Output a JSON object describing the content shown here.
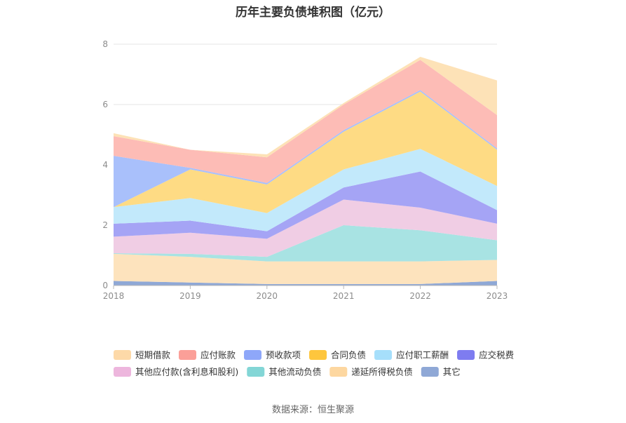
{
  "title": "历年主要负债堆积图（亿元）",
  "source": "数据来源：恒生聚源",
  "chart_data": {
    "type": "area",
    "stacked": true,
    "title": "历年主要负债堆积图（亿元）",
    "categories": [
      "2018",
      "2019",
      "2020",
      "2021",
      "2022",
      "2023"
    ],
    "ylim": [
      0,
      8
    ],
    "yticks": [
      "0",
      "2",
      "4",
      "6",
      "8"
    ],
    "grid": true,
    "legend_position": "bottom",
    "series": [
      {
        "name": "其它",
        "color": "#8fa8d6",
        "values": [
          0.15,
          0.1,
          0.05,
          0.05,
          0.05,
          0.15
        ]
      },
      {
        "name": "递延所得税负债",
        "color": "#fde3bd",
        "values": [
          0.9,
          0.85,
          0.75,
          0.75,
          0.75,
          0.7
        ]
      },
      {
        "name": "其他流动负债",
        "color": "#a8e3e3",
        "values": [
          0.02,
          0.1,
          0.15,
          1.2,
          1.03,
          0.65
        ]
      },
      {
        "name": "其他应付款(含利息和股利)",
        "color": "#f0cde4",
        "values": [
          0.55,
          0.7,
          0.6,
          0.85,
          0.75,
          0.55
        ]
      },
      {
        "name": "应交税费",
        "color": "#a5a4f5",
        "values": [
          0.43,
          0.4,
          0.25,
          0.4,
          1.2,
          0.45
        ]
      },
      {
        "name": "应付职工薪酬",
        "color": "#c2e9fb",
        "values": [
          0.55,
          0.75,
          0.6,
          0.6,
          0.75,
          0.8
        ]
      },
      {
        "name": "合同负债",
        "color": "#fedb84",
        "values": [
          0.0,
          0.95,
          0.95,
          1.25,
          1.9,
          1.2
        ]
      },
      {
        "name": "预收款项",
        "color": "#a9c0fb",
        "values": [
          1.7,
          0.05,
          0.05,
          0.05,
          0.05,
          0.05
        ]
      },
      {
        "name": "应付账款",
        "color": "#fdbcb6",
        "values": [
          0.65,
          0.6,
          0.85,
          0.85,
          1.0,
          1.1
        ]
      },
      {
        "name": "短期借款",
        "color": "#fde2b7",
        "values": [
          0.1,
          0.0,
          0.1,
          0.05,
          0.1,
          1.15
        ]
      }
    ]
  },
  "legend": {
    "rows": [
      [
        {
          "label": "短期借款",
          "color": "#fdd9a8"
        },
        {
          "label": "应付账款",
          "color": "#fb9f98"
        },
        {
          "label": "预收款项",
          "color": "#8ea7f9"
        },
        {
          "label": "合同负债",
          "color": "#fec63d"
        },
        {
          "label": "应付职工薪酬",
          "color": "#a6dffb"
        },
        {
          "label": "应交税费",
          "color": "#7e7cf0"
        }
      ],
      [
        {
          "label": "其他应付款(含利息和股利)",
          "color": "#edb6dd"
        },
        {
          "label": "其他流动负债",
          "color": "#83d6d6"
        },
        {
          "label": "递延所得税负债",
          "color": "#fdd7a0"
        },
        {
          "label": "其它",
          "color": "#8fa8d6"
        }
      ]
    ]
  }
}
